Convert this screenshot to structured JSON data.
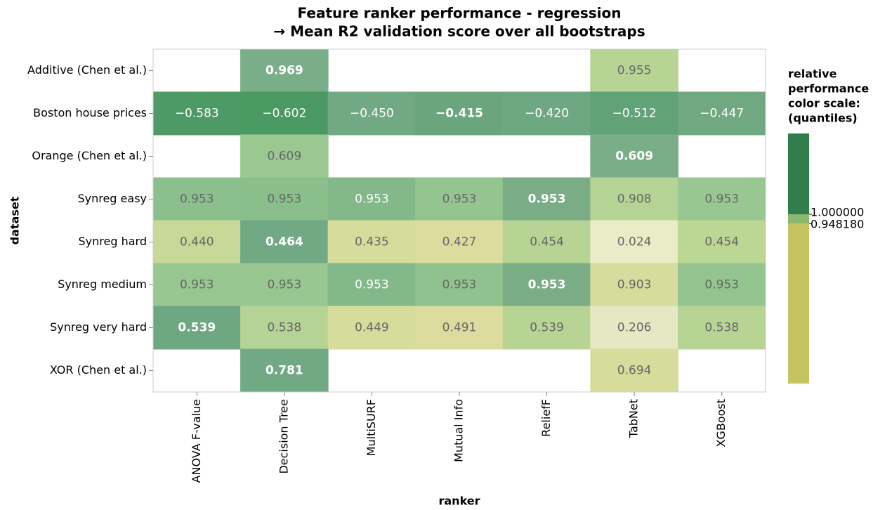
{
  "chart_data": {
    "type": "heatmap",
    "title": [
      "Feature ranker performance - regression",
      "→ Mean R2 validation score over all bootstraps"
    ],
    "x_label": "ranker",
    "y_label": "dataset",
    "x": [
      "ANOVA F-value",
      "Decision Tree",
      "MultiSURF",
      "Mutual Info",
      "ReliefF",
      "TabNet",
      "XGBoost"
    ],
    "y": [
      "Additive (Chen et al.)",
      "Boston house prices",
      "Orange (Chen et al.)",
      "Synreg easy",
      "Synreg hard",
      "Synreg medium",
      "Synreg very hard",
      "XOR (Chen et al.)"
    ],
    "values": [
      [
        null,
        0.969,
        null,
        null,
        null,
        0.955,
        null
      ],
      [
        -0.583,
        -0.602,
        -0.45,
        -0.415,
        -0.42,
        -0.512,
        -0.447
      ],
      [
        null,
        0.609,
        null,
        null,
        null,
        0.609,
        null
      ],
      [
        0.953,
        0.953,
        0.953,
        0.953,
        0.953,
        0.908,
        0.953
      ],
      [
        0.44,
        0.464,
        0.435,
        0.427,
        0.454,
        0.024,
        0.454
      ],
      [
        0.953,
        0.953,
        0.953,
        0.953,
        0.953,
        0.903,
        0.953
      ],
      [
        0.539,
        0.538,
        0.449,
        0.491,
        0.539,
        0.206,
        0.538
      ],
      [
        null,
        0.781,
        null,
        null,
        null,
        0.694,
        null
      ]
    ],
    "value_labels": [
      [
        null,
        "0.969",
        null,
        null,
        null,
        "0.955",
        null
      ],
      [
        "−0.583",
        "−0.602",
        "−0.450",
        "−0.415",
        "−0.420",
        "−0.512",
        "−0.447"
      ],
      [
        null,
        "0.609",
        null,
        null,
        null,
        "0.609",
        null
      ],
      [
        "0.953",
        "0.953",
        "0.953",
        "0.953",
        "0.953",
        "0.908",
        "0.953"
      ],
      [
        "0.440",
        "0.464",
        "0.435",
        "0.427",
        "0.454",
        "0.024",
        "0.454"
      ],
      [
        "0.953",
        "0.953",
        "0.953",
        "0.953",
        "0.953",
        "0.903",
        "0.953"
      ],
      [
        "0.539",
        "0.538",
        "0.449",
        "0.491",
        "0.539",
        "0.206",
        "0.538"
      ],
      [
        null,
        "0.781",
        null,
        null,
        null,
        "0.694",
        null
      ]
    ],
    "colors": [
      [
        null,
        "#7aae88",
        null,
        null,
        null,
        "#b8d494",
        null
      ],
      [
        "#4e9a66",
        "#4a9862",
        "#72a985",
        "#6aa57e",
        "#6ea882",
        "#62a277",
        "#70a882"
      ],
      [
        null,
        "#9ac890",
        null,
        null,
        null,
        "#7aae88",
        null
      ],
      [
        "#8cbf8e",
        "#8abf8c",
        "#82b88a",
        "#94c590",
        "#7aad86",
        "#b5d394",
        "#98c791"
      ],
      [
        "#c8d896",
        "#72a985",
        "#d6dc9c",
        "#dcdc9e",
        "#b8d494",
        "#eaecc8",
        "#bcd694"
      ],
      [
        "#98c791",
        "#98c791",
        "#82b88a",
        "#90c28f",
        "#7aad86",
        "#d6dc9c",
        "#94c590"
      ],
      [
        "#6ea882",
        "#b5d394",
        "#d6dc9c",
        "#dcdc9e",
        "#b8d494",
        "#e6e8c4",
        "#b8d494"
      ],
      [
        null,
        "#72a985",
        null,
        null,
        null,
        "#d6dc9c",
        null
      ]
    ],
    "bold": [
      [
        false,
        true,
        false,
        false,
        false,
        false,
        false
      ],
      [
        false,
        false,
        false,
        true,
        false,
        false,
        false
      ],
      [
        false,
        false,
        false,
        false,
        false,
        true,
        false
      ],
      [
        false,
        false,
        false,
        false,
        true,
        false,
        false
      ],
      [
        false,
        true,
        false,
        false,
        false,
        false,
        false
      ],
      [
        false,
        false,
        false,
        false,
        true,
        false,
        false
      ],
      [
        true,
        false,
        false,
        false,
        false,
        false,
        false
      ],
      [
        false,
        true,
        false,
        false,
        false,
        false,
        false
      ]
    ],
    "legend": {
      "title": [
        "relative",
        "performance",
        "color scale:",
        "(quantiles)"
      ],
      "colors": [
        "#2e7d4a",
        "#8ab86e",
        "#c4c462"
      ],
      "ticks": [
        {
          "value": 1.0,
          "label": "1.000000"
        },
        {
          "value": 0.94818,
          "label": "0.948180"
        }
      ]
    }
  }
}
